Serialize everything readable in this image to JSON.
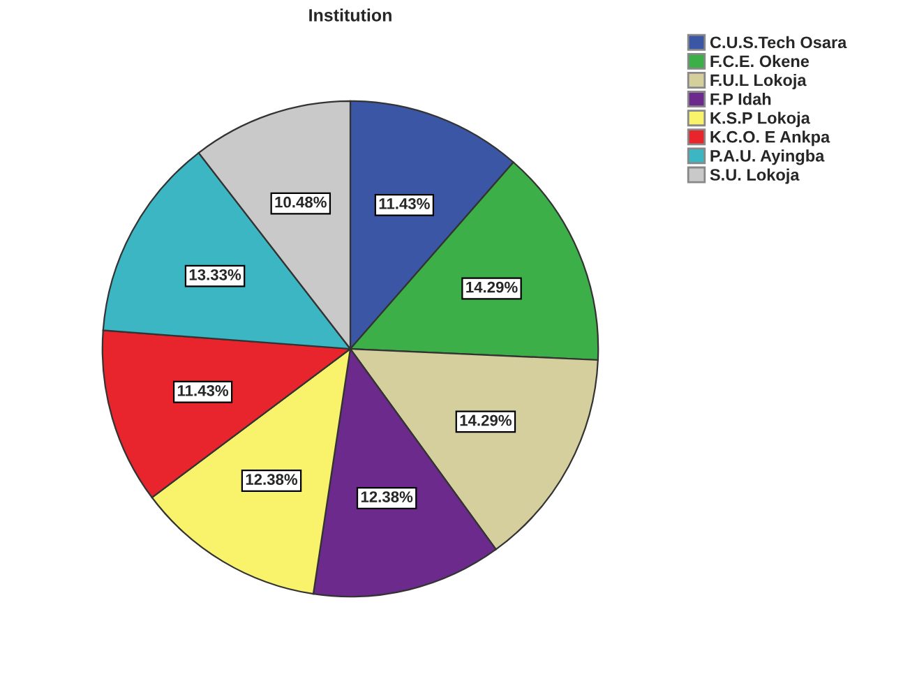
{
  "chart_data": {
    "type": "pie",
    "title": "Institution",
    "categories": [
      "C.U.S.Tech Osara",
      "F.C.E. Okene",
      "F.U.L Lokoja",
      "F.P Idah",
      "K.S.P Lokoja",
      "K.C.O. E Ankpa",
      "P.A.U. Ayingba",
      "S.U. Lokoja"
    ],
    "values": [
      11.43,
      14.29,
      14.29,
      12.38,
      12.38,
      11.43,
      13.33,
      10.48
    ],
    "colors": [
      "#3c56a6",
      "#3daf48",
      "#d4cf9c",
      "#6b2a8c",
      "#f9f36c",
      "#e8242c",
      "#3cb6c3",
      "#c9c9c9"
    ],
    "value_labels": [
      "11.43%",
      "14.29%",
      "14.29%",
      "12.38%",
      "12.38%",
      "11.43%",
      "13.33%",
      "10.48%"
    ],
    "legend": "top right"
  }
}
